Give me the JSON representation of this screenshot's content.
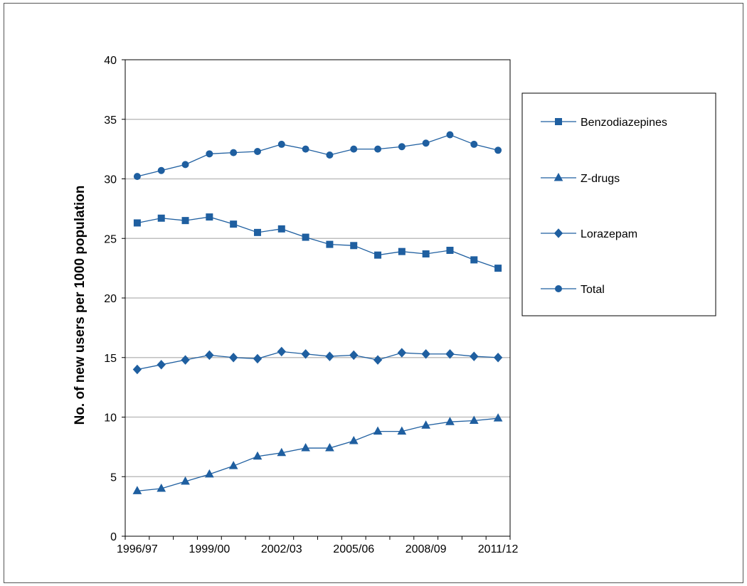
{
  "chart_data": {
    "type": "line",
    "title": "",
    "xlabel": "",
    "ylabel": "No. of new users per 1000 population",
    "ylim": [
      0,
      40
    ],
    "yticks": [
      0,
      5,
      10,
      15,
      20,
      25,
      30,
      35,
      40
    ],
    "grid": true,
    "legend": "right",
    "x": [
      "1996/97",
      "1997/98",
      "1998/99",
      "1999/00",
      "2000/01",
      "2001/02",
      "2002/03",
      "2003/04",
      "2004/05",
      "2005/06",
      "2006/07",
      "2007/08",
      "2008/09",
      "2009/10",
      "2010/11",
      "2011/12"
    ],
    "xtick_labels": [
      "1996/97",
      "1999/00",
      "2002/03",
      "2005/06",
      "2008/09",
      "2011/12"
    ],
    "line_color": "#1f5fa0",
    "grid_color": "#bfbfbf",
    "series": [
      {
        "name": "Benzodiazepines",
        "marker": "square",
        "values": [
          26.3,
          26.7,
          26.5,
          26.8,
          26.2,
          25.5,
          25.8,
          25.1,
          24.5,
          24.4,
          23.6,
          23.9,
          23.7,
          24.0,
          23.2,
          22.5
        ]
      },
      {
        "name": "Z-drugs",
        "marker": "triangle",
        "values": [
          3.8,
          4.0,
          4.6,
          5.2,
          5.9,
          6.7,
          7.0,
          7.4,
          7.4,
          8.0,
          8.8,
          8.8,
          9.3,
          9.6,
          9.7,
          9.9
        ]
      },
      {
        "name": "Lorazepam",
        "marker": "diamond",
        "values": [
          14.0,
          14.4,
          14.8,
          15.2,
          15.0,
          14.9,
          15.5,
          15.3,
          15.1,
          15.2,
          14.8,
          15.4,
          15.3,
          15.3,
          15.1,
          15.0
        ]
      },
      {
        "name": "Total",
        "marker": "circle",
        "values": [
          30.2,
          30.7,
          31.2,
          32.1,
          32.2,
          32.3,
          32.9,
          32.5,
          32.0,
          32.5,
          32.5,
          32.7,
          33.0,
          33.7,
          32.9,
          32.4
        ]
      }
    ]
  }
}
